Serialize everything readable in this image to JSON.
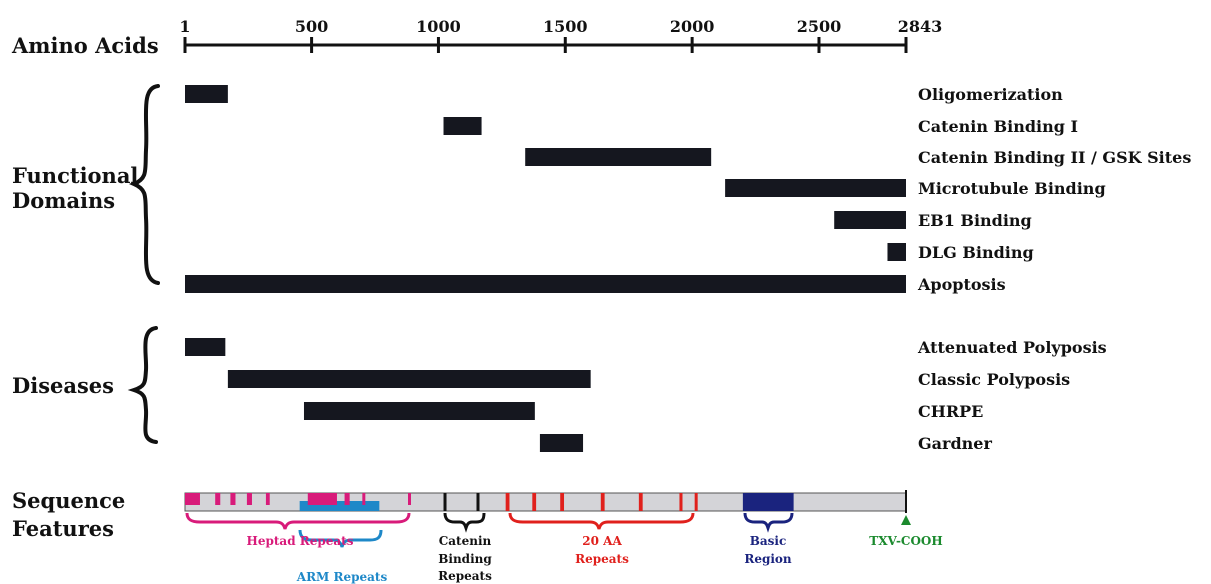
{
  "axis": {
    "label": "Amino Acids",
    "max": 2843,
    "ticks": [
      {
        "value": 1,
        "label": "1"
      },
      {
        "value": 500,
        "label": "500"
      },
      {
        "value": 1000,
        "label": "1000"
      },
      {
        "value": 1500,
        "label": "1500"
      },
      {
        "value": 2000,
        "label": "2000"
      },
      {
        "value": 2500,
        "label": "2500"
      },
      {
        "value": 2843,
        "label": "2843"
      }
    ]
  },
  "sections": {
    "functional_1": "Functional",
    "functional_2": "Domains",
    "diseases": "Diseases",
    "sequence_1": "Sequence",
    "sequence_2": "Features"
  },
  "functional_domains": [
    {
      "label": "Oligomerization",
      "start": 1,
      "end": 170
    },
    {
      "label": "Catenin Binding I",
      "start": 1020,
      "end": 1170
    },
    {
      "label": "Catenin Binding II / GSK Sites",
      "start": 1342,
      "end": 2075
    },
    {
      "label": "Microtubule Binding",
      "start": 2130,
      "end": 2843
    },
    {
      "label": "EB1 Binding",
      "start": 2560,
      "end": 2843
    },
    {
      "label": "DLG Binding",
      "start": 2770,
      "end": 2843
    },
    {
      "label": "Apoptosis",
      "start": 1,
      "end": 2843
    }
  ],
  "diseases": [
    {
      "label": "Attenuated Polyposis",
      "start": 1,
      "end": 160
    },
    {
      "label": "Classic Polyposis",
      "start": 170,
      "end": 1600
    },
    {
      "label": "CHRPE",
      "start": 470,
      "end": 1380
    },
    {
      "label": "Gardner",
      "start": 1400,
      "end": 1570
    }
  ],
  "sequence_features": {
    "heptad_marks": [
      [
        1,
        60
      ],
      [
        120,
        140
      ],
      [
        180,
        200
      ],
      [
        245,
        265
      ],
      [
        320,
        335
      ],
      [
        485,
        600
      ],
      [
        630,
        650
      ],
      [
        700,
        710
      ],
      [
        880,
        890
      ]
    ],
    "arm_repeats": [
      [
        453,
        767
      ]
    ],
    "catenin_marks": [
      [
        1020,
        1030
      ],
      [
        1150,
        1160
      ]
    ],
    "aa20_marks": [
      [
        1265,
        1280
      ],
      [
        1370,
        1385
      ],
      [
        1480,
        1495
      ],
      [
        1640,
        1655
      ],
      [
        1790,
        1805
      ],
      [
        1950,
        1962
      ],
      [
        2010,
        2020
      ]
    ],
    "basic_region": [
      2200,
      2400
    ],
    "labels": [
      {
        "text": "Heptad Repeats",
        "color": "#d81b7a"
      },
      {
        "text": "ARM Repeats",
        "color": "#1e88c8"
      },
      {
        "text": "Catenin",
        "color": "#111111"
      },
      {
        "text": "Binding",
        "color": "#111111"
      },
      {
        "text": "Repeats",
        "color": "#111111"
      },
      {
        "text": "20 AA",
        "color": "#e0201c"
      },
      {
        "text": "Repeats",
        "color": "#e0201c"
      },
      {
        "text": "Basic",
        "color": "#1a237e"
      },
      {
        "text": "Region",
        "color": "#1a237e"
      },
      {
        "text": "TXV-COOH",
        "color": "#1b8a2e"
      }
    ]
  },
  "colors": {
    "bar": "#15171f",
    "heptad": "#d81b7a",
    "arm": "#1e88c8",
    "aa20": "#e0201c",
    "basic": "#1a237e",
    "txv": "#1b8a2e",
    "track": "#d4d4d8"
  }
}
